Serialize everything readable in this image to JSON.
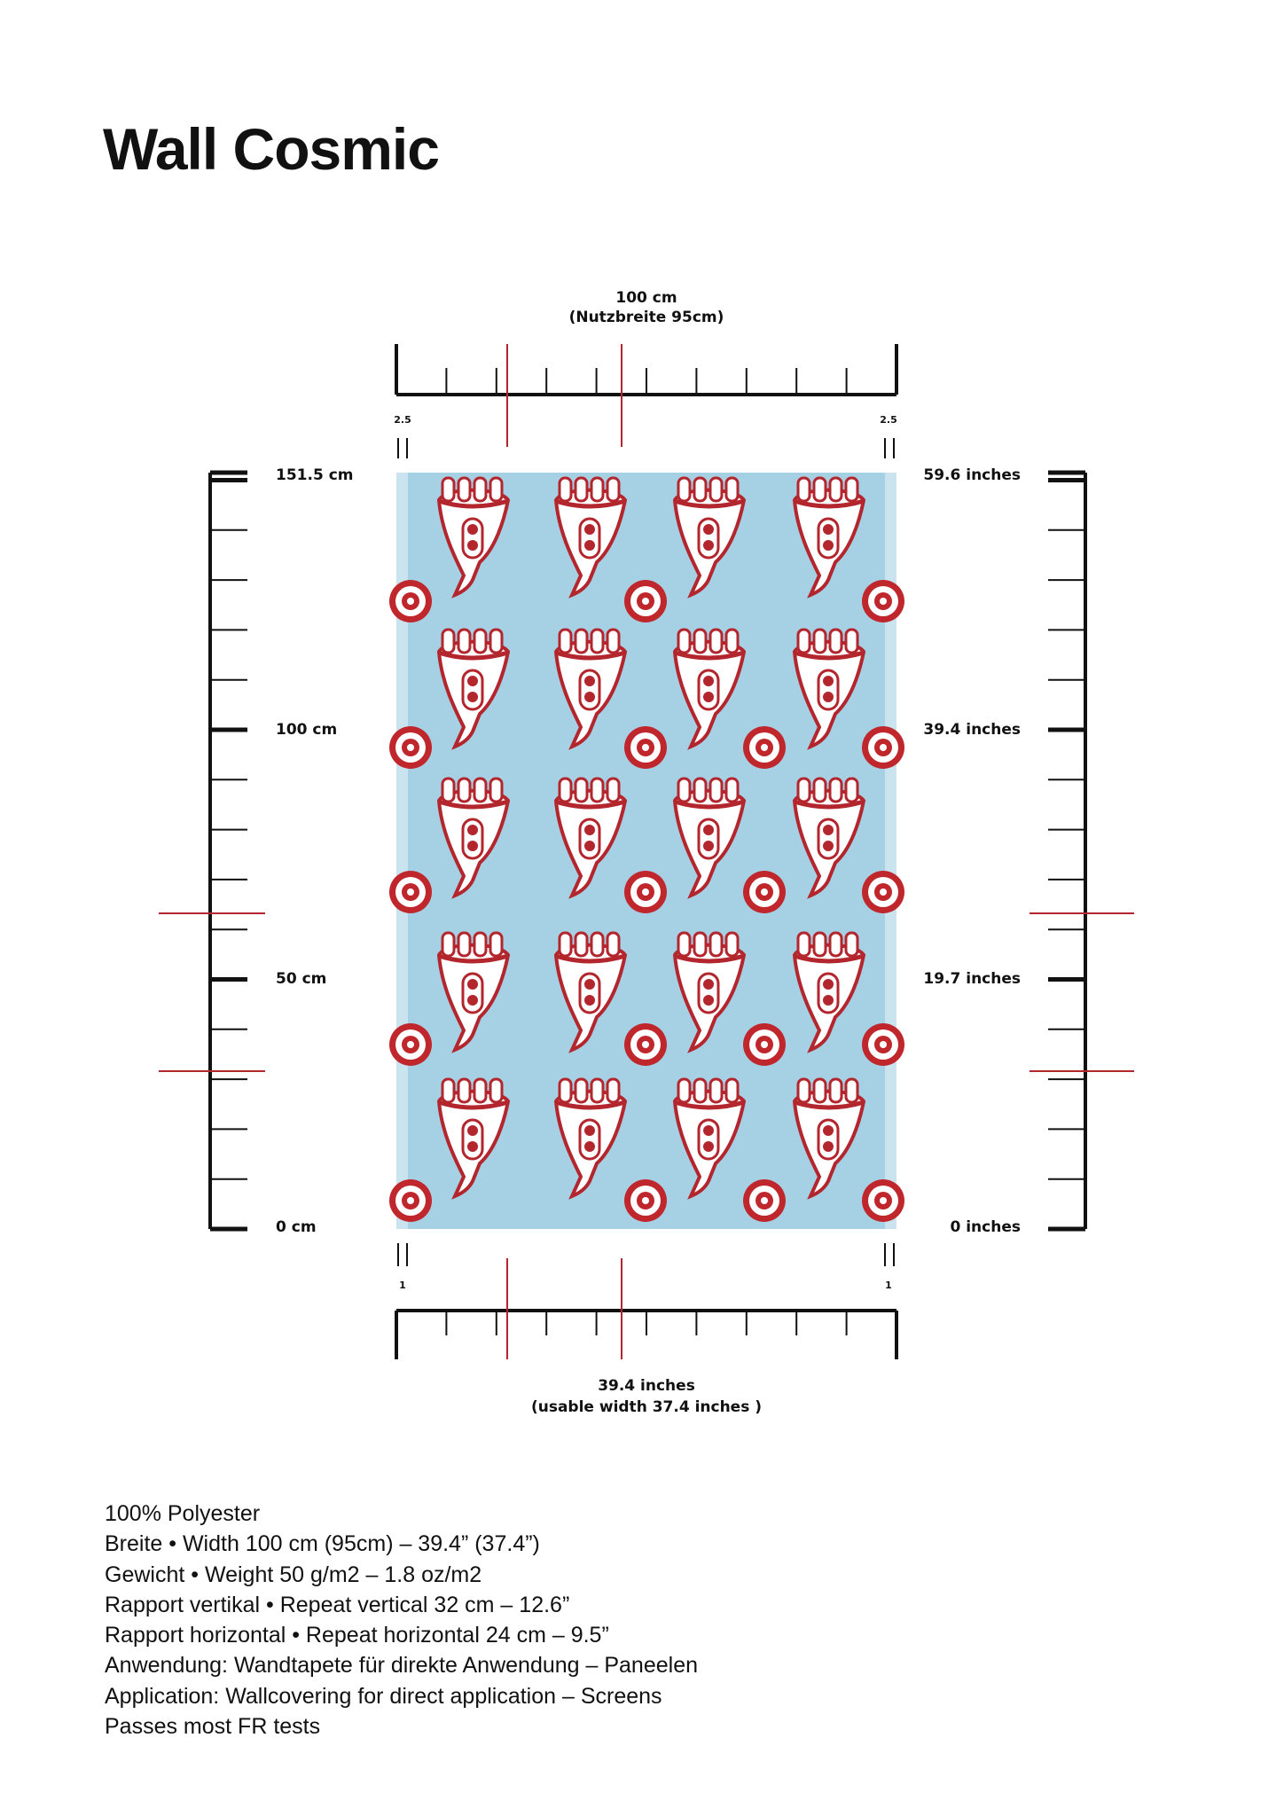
{
  "title": "Wall Cosmic",
  "top_ruler": {
    "label": "100 cm",
    "sublabel": "(Nutzbreite 95cm)",
    "left_margin": "2.5",
    "right_margin": "2.5"
  },
  "left_ruler": {
    "labels": [
      "151.5 cm",
      "100 cm",
      "50 cm",
      "0 cm"
    ]
  },
  "right_ruler": {
    "labels": [
      "59.6 inches",
      "39.4 inches",
      "19.7 inches",
      "0 inches"
    ]
  },
  "bottom_ruler": {
    "label": "39.4 inches",
    "sublabel": "(usable width 37.4 inches )",
    "left_margin": "1",
    "right_margin": "1"
  },
  "specs": [
    "100% Polyester",
    "Breite • Width 100 cm (95cm) – 39.4” (37.4”)",
    "Gewicht • Weight 50 g/m2 – 1.8 oz/m2",
    "Rapport vertikal • Repeat vertical 32 cm – 12.6”",
    "Rapport horizontal • Repeat horizontal 24 cm – 9.5”",
    "Anwendung: Wandtapete für direkte Anwendung – Paneelen",
    "Application: Wallcovering for direct application – Screens",
    "Passes most FR tests"
  ]
}
